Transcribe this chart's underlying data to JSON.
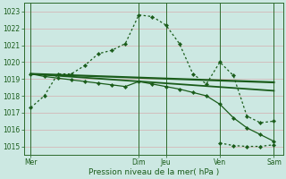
{
  "bg_color": "#cce8e2",
  "grid_color": "#d4b8b8",
  "line_color": "#1a5c1a",
  "xlabel": "Pression niveau de la mer( hPa )",
  "ylim": [
    1014.5,
    1023.5
  ],
  "yticks": [
    1015,
    1016,
    1017,
    1018,
    1019,
    1020,
    1021,
    1022,
    1023
  ],
  "day_labels": [
    "Mer",
    "Dim",
    "Jeu",
    "Ven",
    "Sam"
  ],
  "day_positions": [
    0,
    48,
    60,
    84,
    108
  ],
  "xlim": [
    -3,
    112
  ],
  "series": [
    {
      "x": [
        0,
        6,
        12,
        18,
        24,
        30,
        36,
        42,
        48,
        54,
        60,
        66,
        72,
        78,
        84,
        90,
        96,
        102,
        108
      ],
      "y": [
        1017.3,
        1018.0,
        1019.3,
        1019.3,
        1019.8,
        1020.5,
        1020.7,
        1021.1,
        1022.8,
        1022.7,
        1022.2,
        1021.1,
        1019.3,
        1018.7,
        1020.0,
        1019.2,
        1016.8,
        1016.4,
        1016.5
      ],
      "linestyle": "dotted",
      "marker": "D",
      "ms": 2.2,
      "lw": 0.9,
      "zorder": 4
    },
    {
      "x": [
        0,
        108
      ],
      "y": [
        1019.3,
        1018.8
      ],
      "linestyle": "solid",
      "marker": null,
      "ms": 0,
      "lw": 1.6,
      "zorder": 3
    },
    {
      "x": [
        0,
        108
      ],
      "y": [
        1019.3,
        1018.3
      ],
      "linestyle": "solid",
      "marker": null,
      "ms": 0,
      "lw": 1.3,
      "zorder": 3
    },
    {
      "x": [
        0,
        6,
        12,
        18,
        24,
        30,
        36,
        42,
        48,
        54,
        60,
        66,
        72,
        78,
        84,
        90,
        96,
        102,
        108
      ],
      "y": [
        1019.3,
        1019.15,
        1019.05,
        1018.95,
        1018.85,
        1018.75,
        1018.65,
        1018.55,
        1018.85,
        1018.7,
        1018.55,
        1018.4,
        1018.2,
        1018.0,
        1017.5,
        1016.7,
        1016.1,
        1015.7,
        1015.3
      ],
      "linestyle": "solid",
      "marker": "D",
      "ms": 2.2,
      "lw": 0.9,
      "zorder": 4
    },
    {
      "x": [
        84,
        90,
        96,
        102,
        108
      ],
      "y": [
        1015.2,
        1015.05,
        1015.0,
        1015.0,
        1015.1
      ],
      "linestyle": "dotted",
      "marker": "D",
      "ms": 2.2,
      "lw": 0.9,
      "zorder": 4
    }
  ]
}
